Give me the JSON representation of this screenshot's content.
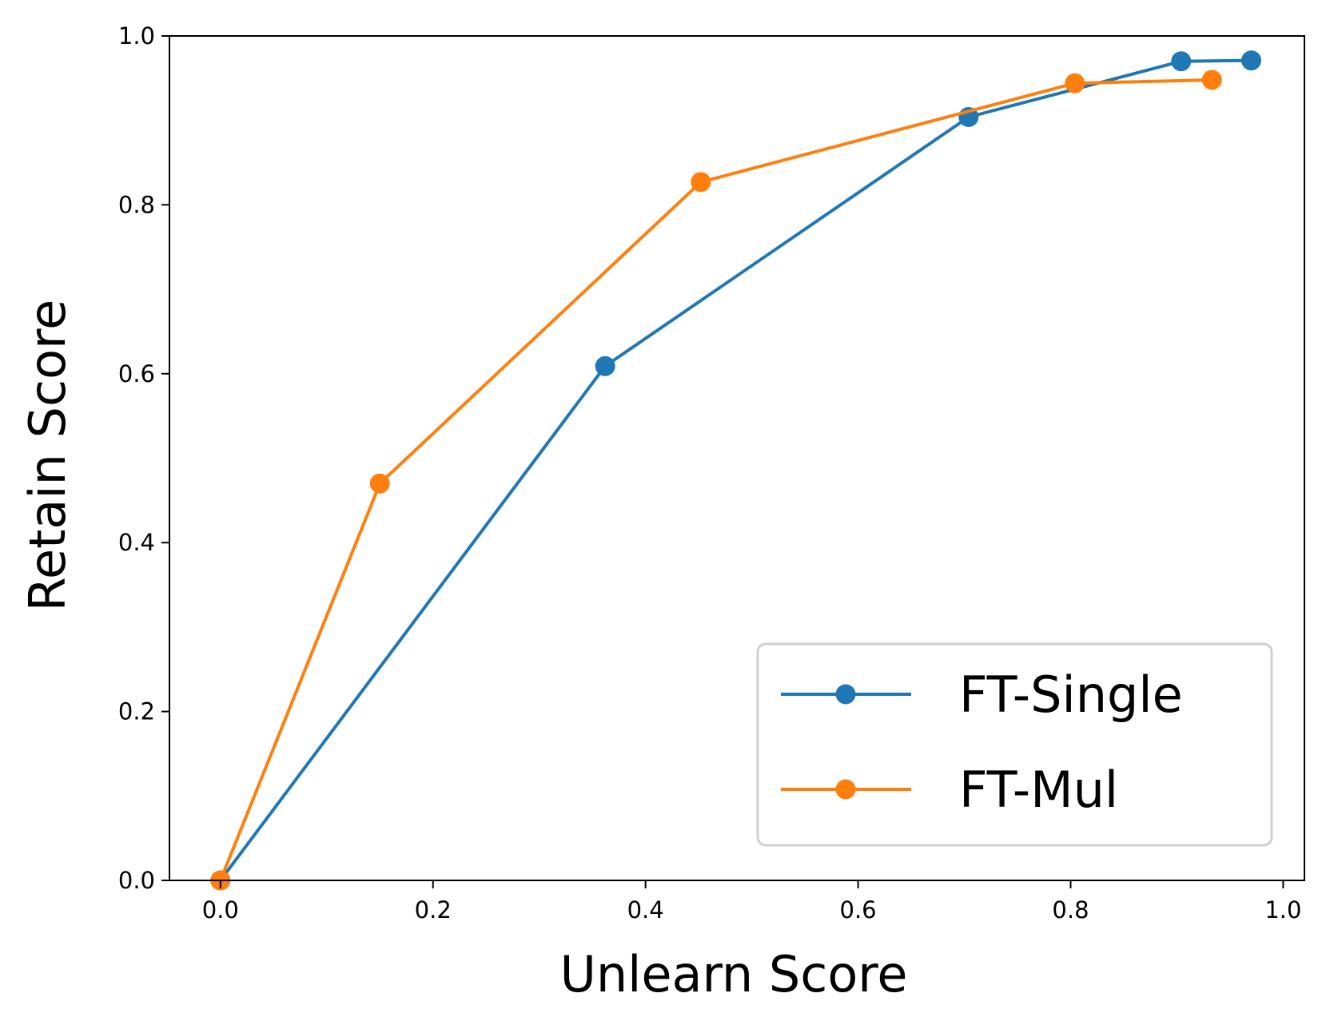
{
  "chart_data": {
    "type": "line",
    "title": "",
    "xlabel": "Unlearn Score",
    "ylabel": "Retain Score",
    "xlim": [
      -0.048,
      1.02
    ],
    "ylim": [
      0.0,
      1.0
    ],
    "xticks": [
      "0.0",
      "0.2",
      "0.4",
      "0.6",
      "0.8",
      "1.0"
    ],
    "yticks": [
      "0.0",
      "0.2",
      "0.4",
      "0.6",
      "0.8",
      "1.0"
    ],
    "grid": false,
    "legend_position": "lower-right",
    "series": [
      {
        "name": "FT-Single",
        "color": "#1f77b4",
        "x": [
          0.0,
          0.362,
          0.704,
          0.904,
          0.97
        ],
        "y": [
          0.0,
          0.609,
          0.904,
          0.97,
          0.971
        ]
      },
      {
        "name": "FT-Mul",
        "color": "#ff7f0e",
        "x": [
          0.0,
          0.15,
          0.452,
          0.804,
          0.933
        ],
        "y": [
          0.0,
          0.47,
          0.827,
          0.944,
          0.948
        ]
      }
    ]
  }
}
